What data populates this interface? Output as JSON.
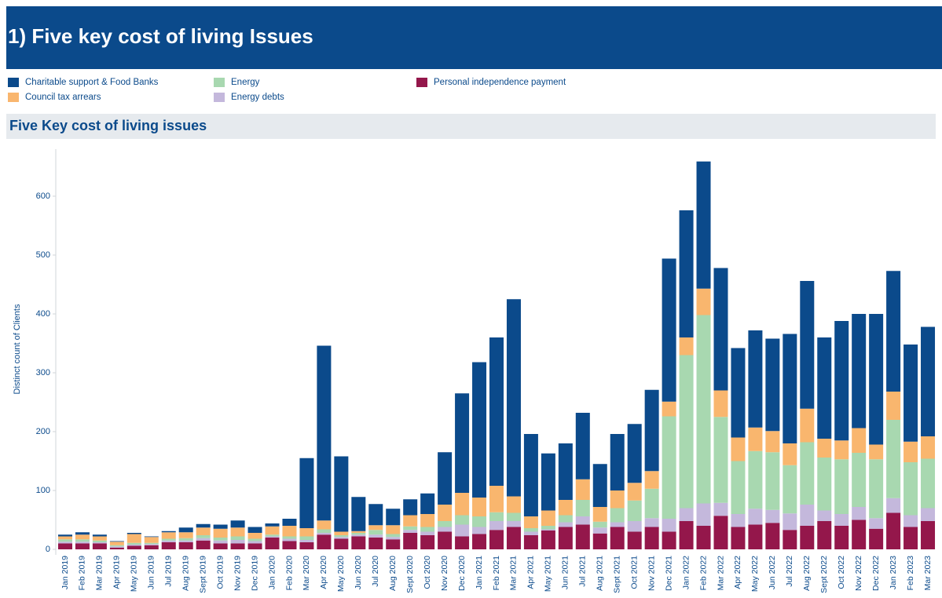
{
  "chart_data": {
    "type": "stacked_bar",
    "title": "1) Five key cost of living Issues",
    "subtitle": "Five Key cost of living issues",
    "y_label": "Distinct count of Clients",
    "categories": [
      "Jan 2019",
      "Feb 2019",
      "Mar 2019",
      "Apr 2019",
      "May 2019",
      "Jun 2019",
      "Jul 2019",
      "Aug 2019",
      "Sept 2019",
      "Oct 2019",
      "Nov 2019",
      "Dec 2019",
      "Jan 2020",
      "Feb 2020",
      "Mar 2020",
      "Apr 2020",
      "May 2020",
      "Jun 2020",
      "Jul 2020",
      "Aug 2020",
      "Sept 2020",
      "Oct 2020",
      "Nov 2020",
      "Dec 2020",
      "Jan 2021",
      "Feb 2021",
      "Mar 2021",
      "Apr 2021",
      "May 2021",
      "Jun 2021",
      "Jul 2021",
      "Aug 2021",
      "Sept 2021",
      "Oct 2021",
      "Nov 2021",
      "Dec 2021",
      "Jan 2022",
      "Feb 2022",
      "Mar 2022",
      "Apr 2022",
      "May 2022",
      "Jun 2022",
      "Jul 2022",
      "Aug 2022",
      "Sept 2022",
      "Oct 2022",
      "Nov 2022",
      "Dec 2022",
      "Jan 2023",
      "Feb 2023",
      "Mar 2023"
    ],
    "series": [
      {
        "name": "Personal independence payment",
        "color": "#94174b",
        "values": [
          10,
          10,
          10,
          3,
          6,
          7,
          12,
          12,
          15,
          10,
          10,
          10,
          20,
          14,
          12,
          25,
          18,
          22,
          20,
          17,
          28,
          24,
          30,
          22,
          26,
          33,
          38,
          24,
          32,
          38,
          42,
          27,
          38,
          30,
          38,
          30,
          48,
          40,
          57,
          38,
          42,
          45,
          33,
          40,
          48,
          40,
          50,
          35,
          62,
          38,
          48
        ]
      },
      {
        "name": "Energy debts",
        "color": "#c4b8dc",
        "values": [
          3,
          3,
          2,
          2,
          2,
          2,
          3,
          3,
          4,
          5,
          6,
          4,
          2,
          4,
          4,
          3,
          3,
          3,
          5,
          4,
          5,
          6,
          8,
          20,
          12,
          15,
          10,
          6,
          2,
          8,
          14,
          10,
          8,
          18,
          15,
          22,
          22,
          38,
          22,
          22,
          27,
          22,
          28,
          36,
          18,
          20,
          22,
          18,
          25,
          20,
          22
        ]
      },
      {
        "name": "Energy",
        "color": "#a8d8b0",
        "values": [
          4,
          4,
          3,
          2,
          3,
          2,
          3,
          4,
          5,
          5,
          6,
          4,
          3,
          4,
          6,
          6,
          3,
          3,
          8,
          5,
          6,
          8,
          10,
          16,
          18,
          15,
          14,
          6,
          6,
          12,
          28,
          10,
          24,
          35,
          50,
          174,
          260,
          320,
          146,
          90,
          98,
          98,
          82,
          106,
          90,
          93,
          92,
          100,
          133,
          90,
          84
        ]
      },
      {
        "name": "Council tax arrears",
        "color": "#f9b66e",
        "values": [
          5,
          8,
          7,
          6,
          15,
          10,
          11,
          10,
          13,
          15,
          15,
          10,
          14,
          18,
          14,
          15,
          6,
          3,
          8,
          15,
          19,
          22,
          28,
          38,
          32,
          45,
          28,
          20,
          26,
          26,
          35,
          25,
          30,
          30,
          30,
          25,
          30,
          45,
          45,
          40,
          40,
          36,
          37,
          57,
          32,
          32,
          42,
          25,
          48,
          35,
          38
        ]
      },
      {
        "name": "Charitable support & Food Banks",
        "color": "#0b4a8b",
        "values": [
          3,
          4,
          3,
          1,
          2,
          1,
          2,
          8,
          6,
          7,
          12,
          10,
          5,
          12,
          119,
          297,
          128,
          58,
          36,
          28,
          27,
          35,
          89,
          169,
          230,
          252,
          335,
          140,
          97,
          96,
          113,
          73,
          96,
          100,
          138,
          243,
          216,
          216,
          208,
          152,
          165,
          157,
          186,
          217,
          172,
          203,
          194,
          222,
          205,
          165,
          186
        ]
      }
    ],
    "ylim": [
      0,
      680
    ],
    "yticks": [
      0,
      100,
      200,
      300,
      400,
      500,
      600
    ]
  }
}
